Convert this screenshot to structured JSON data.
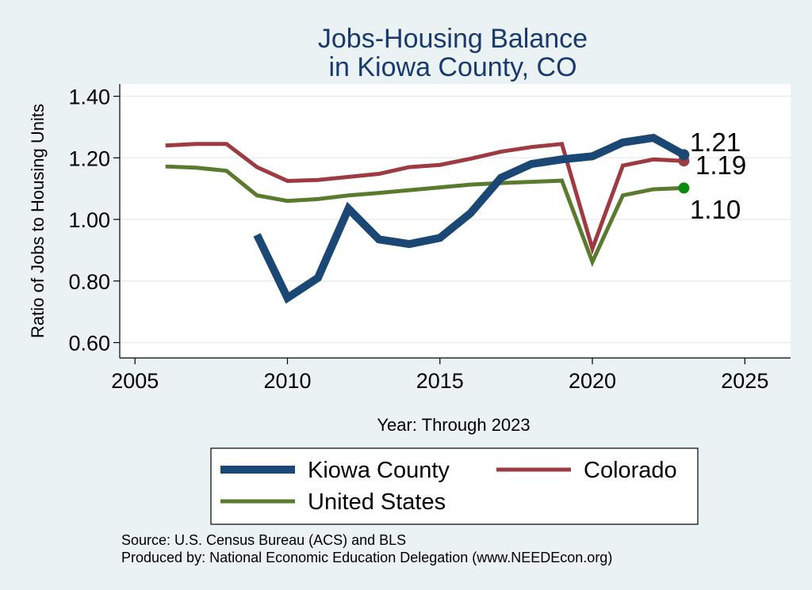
{
  "chart_data": {
    "type": "line",
    "title_line1": "Jobs-Housing Balance",
    "title_line2": "in Kiowa County, CO",
    "xlabel": "Year: Through 2023",
    "ylabel": "Ratio of Jobs to Housing Units",
    "xlim": [
      2004.5,
      2026.5
    ],
    "ylim": [
      0.55,
      1.44
    ],
    "xticks": [
      2005,
      2010,
      2015,
      2020,
      2025
    ],
    "xtick_labels": [
      "2005",
      "2010",
      "2015",
      "2020",
      "2025"
    ],
    "yticks": [
      0.6,
      0.8,
      1.0,
      1.2,
      1.4
    ],
    "ytick_labels": [
      "0.60",
      "0.80",
      "1.00",
      "1.20",
      "1.40"
    ],
    "grid": true,
    "legend_position": "bottom",
    "series": [
      {
        "name": "Kiowa County",
        "color": "#1a4773",
        "x": [
          2009,
          2010,
          2011,
          2012,
          2013,
          2014,
          2015,
          2016,
          2017,
          2018,
          2019,
          2020,
          2021,
          2022,
          2023
        ],
        "values": [
          0.95,
          0.745,
          0.81,
          1.035,
          0.935,
          0.92,
          0.94,
          1.02,
          1.135,
          1.18,
          1.195,
          1.205,
          1.25,
          1.265,
          1.21
        ],
        "end_label": "1.21"
      },
      {
        "name": "Colorado",
        "color": "#9e3a42",
        "x": [
          2006,
          2007,
          2008,
          2009,
          2010,
          2011,
          2012,
          2013,
          2014,
          2015,
          2016,
          2017,
          2018,
          2019,
          2020,
          2021,
          2022,
          2023
        ],
        "values": [
          1.24,
          1.245,
          1.245,
          1.17,
          1.125,
          1.128,
          1.138,
          1.148,
          1.17,
          1.177,
          1.197,
          1.22,
          1.235,
          1.245,
          0.905,
          1.175,
          1.195,
          1.19
        ],
        "end_label": "1.19"
      },
      {
        "name": "United States",
        "color": "#5a7a2e",
        "x": [
          2006,
          2007,
          2008,
          2009,
          2010,
          2011,
          2012,
          2013,
          2014,
          2015,
          2016,
          2017,
          2018,
          2019,
          2020,
          2021,
          2022,
          2023
        ],
        "values": [
          1.172,
          1.168,
          1.158,
          1.078,
          1.06,
          1.066,
          1.078,
          1.086,
          1.095,
          1.104,
          1.113,
          1.118,
          1.122,
          1.126,
          0.862,
          1.078,
          1.098,
          1.102
        ],
        "end_label": "1.10",
        "end_point_color": "#0a8a10"
      }
    ]
  },
  "notes": {
    "source": "Source: U.S. Census Bureau (ACS) and BLS",
    "produced_by": "Produced by: National Economic Education Delegation (www.NEEDEcon.org)"
  }
}
